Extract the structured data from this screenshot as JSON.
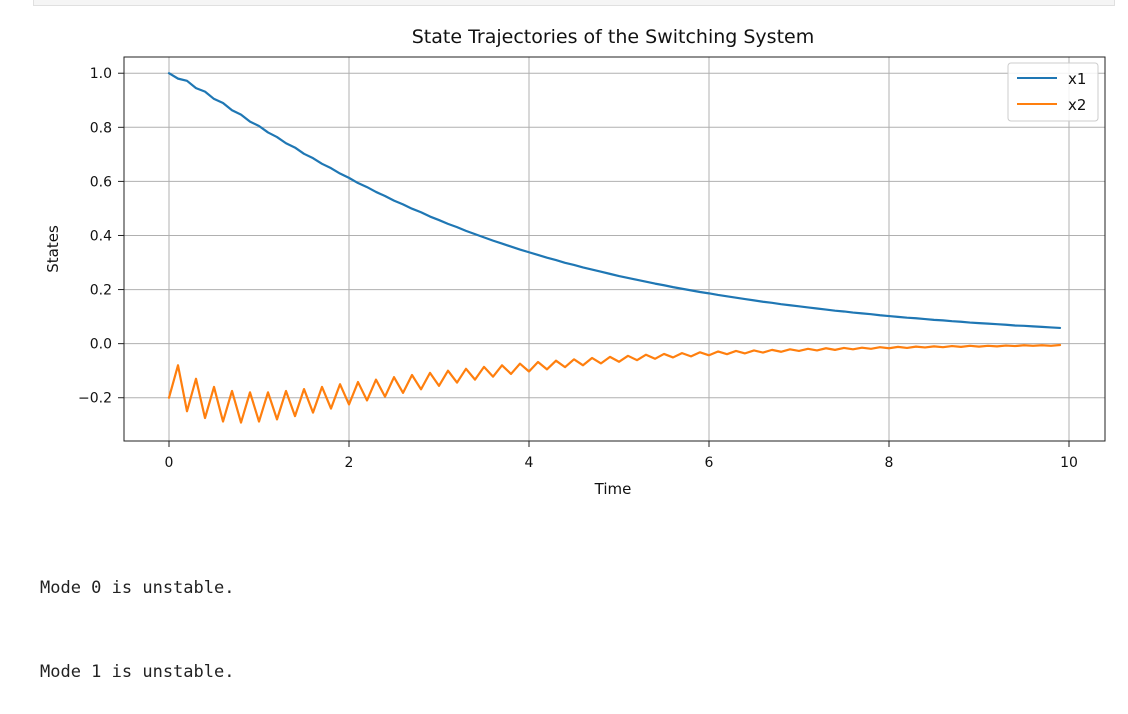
{
  "chart_data": {
    "type": "line",
    "title": "State Trajectories of the Switching System",
    "xlabel": "Time",
    "ylabel": "States",
    "xlim": [
      -0.5,
      10.4
    ],
    "ylim": [
      -0.36,
      1.06
    ],
    "xticks": [
      0,
      2,
      4,
      6,
      8,
      10
    ],
    "yticks": [
      -0.2,
      0.0,
      0.2,
      0.4,
      0.6,
      0.8,
      1.0
    ],
    "ytick_labels": [
      "−0.2",
      "0.0",
      "0.2",
      "0.4",
      "0.6",
      "0.8",
      "1.0"
    ],
    "grid": true,
    "legend_position": "top-right",
    "series": [
      {
        "name": "x1",
        "color": "#1f77b4",
        "x": [
          0,
          0.1,
          0.2,
          0.3,
          0.4,
          0.5,
          0.6,
          0.7,
          0.8,
          0.9,
          1.0,
          1.1,
          1.2,
          1.3,
          1.4,
          1.5,
          1.6,
          1.7,
          1.8,
          1.9,
          2.0,
          2.1,
          2.2,
          2.3,
          2.4,
          2.5,
          2.6,
          2.7,
          2.8,
          2.9,
          3.0,
          3.1,
          3.2,
          3.3,
          3.4,
          3.5,
          3.6,
          3.7,
          3.8,
          3.9,
          4.0,
          4.1,
          4.2,
          4.3,
          4.4,
          4.5,
          4.6,
          4.7,
          4.8,
          4.9,
          5.0,
          5.1,
          5.2,
          5.3,
          5.4,
          5.5,
          5.6,
          5.7,
          5.8,
          5.9,
          6.0,
          6.1,
          6.2,
          6.3,
          6.4,
          6.5,
          6.6,
          6.7,
          6.8,
          6.9,
          7.0,
          7.1,
          7.2,
          7.3,
          7.4,
          7.5,
          7.6,
          7.7,
          7.8,
          7.9,
          8.0,
          8.1,
          8.2,
          8.3,
          8.4,
          8.5,
          8.6,
          8.7,
          8.8,
          8.9,
          9.0,
          9.1,
          9.2,
          9.3,
          9.4,
          9.5,
          9.6,
          9.7,
          9.8,
          9.9
        ],
        "values": [
          1.0,
          0.98,
          0.972,
          0.945,
          0.932,
          0.905,
          0.89,
          0.863,
          0.847,
          0.821,
          0.805,
          0.781,
          0.764,
          0.741,
          0.725,
          0.702,
          0.686,
          0.665,
          0.649,
          0.629,
          0.613,
          0.594,
          0.579,
          0.561,
          0.546,
          0.529,
          0.515,
          0.499,
          0.486,
          0.47,
          0.457,
          0.443,
          0.431,
          0.417,
          0.405,
          0.393,
          0.381,
          0.37,
          0.359,
          0.348,
          0.338,
          0.328,
          0.318,
          0.309,
          0.299,
          0.291,
          0.282,
          0.274,
          0.266,
          0.258,
          0.25,
          0.243,
          0.236,
          0.229,
          0.222,
          0.216,
          0.209,
          0.203,
          0.197,
          0.191,
          0.186,
          0.18,
          0.175,
          0.17,
          0.165,
          0.16,
          0.155,
          0.151,
          0.146,
          0.142,
          0.138,
          0.134,
          0.13,
          0.126,
          0.122,
          0.119,
          0.115,
          0.112,
          0.109,
          0.105,
          0.102,
          0.099,
          0.096,
          0.094,
          0.091,
          0.088,
          0.086,
          0.083,
          0.081,
          0.078,
          0.076,
          0.074,
          0.072,
          0.07,
          0.067,
          0.066,
          0.064,
          0.062,
          0.06,
          0.058
        ]
      },
      {
        "name": "x2",
        "color": "#ff7f0e",
        "x": [
          0,
          0.1,
          0.2,
          0.3,
          0.4,
          0.5,
          0.6,
          0.7,
          0.8,
          0.9,
          1.0,
          1.1,
          1.2,
          1.3,
          1.4,
          1.5,
          1.6,
          1.7,
          1.8,
          1.9,
          2.0,
          2.1,
          2.2,
          2.3,
          2.4,
          2.5,
          2.6,
          2.7,
          2.8,
          2.9,
          3.0,
          3.1,
          3.2,
          3.3,
          3.4,
          3.5,
          3.6,
          3.7,
          3.8,
          3.9,
          4.0,
          4.1,
          4.2,
          4.3,
          4.4,
          4.5,
          4.6,
          4.7,
          4.8,
          4.9,
          5.0,
          5.1,
          5.2,
          5.3,
          5.4,
          5.5,
          5.6,
          5.7,
          5.8,
          5.9,
          6.0,
          6.1,
          6.2,
          6.3,
          6.4,
          6.5,
          6.6,
          6.7,
          6.8,
          6.9,
          7.0,
          7.1,
          7.2,
          7.3,
          7.4,
          7.5,
          7.6,
          7.7,
          7.8,
          7.9,
          8.0,
          8.1,
          8.2,
          8.3,
          8.4,
          8.5,
          8.6,
          8.7,
          8.8,
          8.9,
          9.0,
          9.1,
          9.2,
          9.3,
          9.4,
          9.5,
          9.6,
          9.7,
          9.8,
          9.9
        ],
        "values": [
          -0.2,
          -0.08,
          -0.25,
          -0.13,
          -0.275,
          -0.16,
          -0.288,
          -0.175,
          -0.292,
          -0.18,
          -0.288,
          -0.18,
          -0.28,
          -0.175,
          -0.268,
          -0.168,
          -0.255,
          -0.16,
          -0.24,
          -0.15,
          -0.225,
          -0.142,
          -0.21,
          -0.133,
          -0.196,
          -0.124,
          -0.182,
          -0.116,
          -0.169,
          -0.108,
          -0.156,
          -0.1,
          -0.144,
          -0.093,
          -0.133,
          -0.086,
          -0.122,
          -0.08,
          -0.112,
          -0.074,
          -0.103,
          -0.068,
          -0.095,
          -0.063,
          -0.087,
          -0.058,
          -0.08,
          -0.053,
          -0.073,
          -0.049,
          -0.067,
          -0.045,
          -0.061,
          -0.041,
          -0.056,
          -0.038,
          -0.051,
          -0.035,
          -0.047,
          -0.032,
          -0.043,
          -0.029,
          -0.039,
          -0.027,
          -0.036,
          -0.025,
          -0.033,
          -0.023,
          -0.03,
          -0.021,
          -0.027,
          -0.019,
          -0.025,
          -0.017,
          -0.023,
          -0.016,
          -0.021,
          -0.015,
          -0.019,
          -0.013,
          -0.017,
          -0.012,
          -0.016,
          -0.011,
          -0.014,
          -0.01,
          -0.013,
          -0.009,
          -0.012,
          -0.008,
          -0.011,
          -0.008,
          -0.01,
          -0.007,
          -0.009,
          -0.006,
          -0.008,
          -0.006,
          -0.008,
          -0.005
        ]
      }
    ]
  },
  "console": {
    "lines": [
      "Mode 0 is unstable.",
      "Mode 1 is unstable."
    ]
  }
}
